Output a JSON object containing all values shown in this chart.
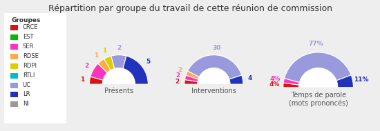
{
  "title": "Répartition par groupe du travail de cette réunion de commission",
  "groups": [
    "CRCE",
    "EST",
    "SER",
    "RDSE",
    "RDPI",
    "RTLI",
    "UC",
    "LR",
    "NI"
  ],
  "colors": [
    "#dd1111",
    "#00bb00",
    "#ff33bb",
    "#ffaa44",
    "#ddcc00",
    "#00bbcc",
    "#9999dd",
    "#2233bb",
    "#999999"
  ],
  "presences": [
    1,
    0,
    2,
    1,
    1,
    0,
    2,
    5,
    0
  ],
  "interventions": [
    2,
    0,
    2,
    2,
    0,
    0,
    30,
    4,
    0
  ],
  "temps_parole": [
    4,
    0,
    4,
    0,
    0,
    0,
    77,
    11,
    0
  ],
  "chart_labels": [
    "Présents",
    "Interventions",
    "Temps de parole\n(mots prononcés)"
  ],
  "background_color": "#eeeeee",
  "legend_bg": "#ffffff"
}
